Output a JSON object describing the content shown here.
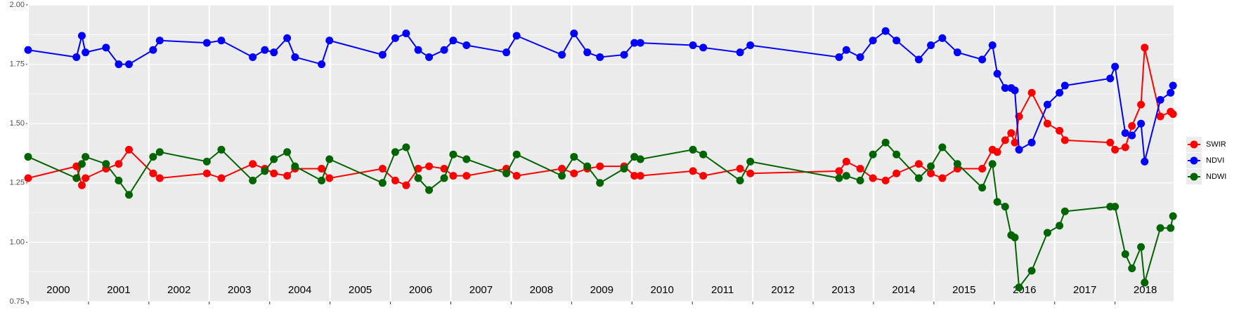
{
  "chart_data": {
    "type": "line",
    "x": [
      2000.0,
      2000.8,
      2000.89,
      2000.95,
      2001.29,
      2001.5,
      2001.67,
      2002.07,
      2002.18,
      2002.96,
      2003.2,
      2003.72,
      2003.92,
      2004.07,
      2004.29,
      2004.42,
      2004.86,
      2004.99,
      2005.87,
      2006.08,
      2006.26,
      2006.46,
      2006.64,
      2006.89,
      2007.04,
      2007.26,
      2007.92,
      2008.09,
      2008.84,
      2009.04,
      2009.26,
      2009.47,
      2009.87,
      2010.04,
      2010.14,
      2011.01,
      2011.18,
      2011.79,
      2011.96,
      2013.43,
      2013.55,
      2013.78,
      2013.99,
      2014.2,
      2014.38,
      2014.75,
      2014.95,
      2015.14,
      2015.39,
      2015.8,
      2015.97,
      2016.05,
      2016.18,
      2016.28,
      2016.34,
      2016.41,
      2016.62,
      2016.88,
      2017.08,
      2017.17,
      2017.92,
      2018.0,
      2018.17,
      2018.28,
      2018.43,
      2018.49,
      2018.75,
      2018.92,
      2018.96
    ],
    "series": [
      {
        "name": "SWIR",
        "color": "#ff0000",
        "values": [
          1.27,
          1.32,
          1.24,
          1.27,
          1.31,
          1.33,
          1.39,
          1.29,
          1.27,
          1.29,
          1.27,
          1.33,
          1.31,
          1.29,
          1.28,
          1.31,
          1.31,
          1.27,
          1.31,
          1.26,
          1.24,
          1.31,
          1.32,
          1.31,
          1.28,
          1.28,
          1.31,
          1.28,
          1.31,
          1.29,
          1.31,
          1.32,
          1.32,
          1.28,
          1.28,
          1.3,
          1.28,
          1.31,
          1.29,
          1.3,
          1.34,
          1.31,
          1.27,
          1.26,
          1.29,
          1.33,
          1.29,
          1.27,
          1.31,
          1.31,
          1.39,
          1.38,
          1.43,
          1.46,
          1.42,
          1.53,
          1.63,
          1.5,
          1.47,
          1.43,
          1.42,
          1.39,
          1.4,
          1.49,
          1.58,
          1.82,
          1.53,
          1.55,
          1.54
        ]
      },
      {
        "name": "NDVI",
        "color": "#0000ff",
        "values": [
          1.81,
          1.78,
          1.87,
          1.8,
          1.82,
          1.75,
          1.75,
          1.81,
          1.85,
          1.84,
          1.85,
          1.78,
          1.81,
          1.8,
          1.86,
          1.78,
          1.75,
          1.85,
          1.79,
          1.86,
          1.88,
          1.81,
          1.78,
          1.81,
          1.85,
          1.83,
          1.8,
          1.87,
          1.79,
          1.88,
          1.8,
          1.78,
          1.79,
          1.84,
          1.84,
          1.83,
          1.82,
          1.8,
          1.83,
          1.78,
          1.81,
          1.78,
          1.85,
          1.89,
          1.85,
          1.77,
          1.83,
          1.86,
          1.8,
          1.77,
          1.83,
          1.71,
          1.65,
          1.65,
          1.64,
          1.39,
          1.42,
          1.58,
          1.63,
          1.66,
          1.69,
          1.74,
          1.46,
          1.45,
          1.5,
          1.34,
          1.6,
          1.63,
          1.66
        ]
      },
      {
        "name": "NDWI",
        "color": "#006400",
        "values": [
          1.36,
          1.27,
          1.33,
          1.36,
          1.33,
          1.26,
          1.2,
          1.36,
          1.38,
          1.34,
          1.39,
          1.26,
          1.3,
          1.35,
          1.38,
          1.32,
          1.26,
          1.35,
          1.25,
          1.38,
          1.4,
          1.27,
          1.22,
          1.27,
          1.37,
          1.35,
          1.29,
          1.37,
          1.28,
          1.36,
          1.32,
          1.25,
          1.31,
          1.36,
          1.35,
          1.39,
          1.37,
          1.26,
          1.34,
          1.27,
          1.28,
          1.26,
          1.37,
          1.42,
          1.37,
          1.27,
          1.32,
          1.4,
          1.33,
          1.23,
          1.33,
          1.17,
          1.15,
          1.03,
          1.02,
          0.81,
          0.88,
          1.04,
          1.07,
          1.13,
          1.15,
          1.15,
          0.95,
          0.89,
          0.98,
          0.83,
          1.06,
          1.06,
          1.11
        ]
      }
    ],
    "xlim": [
      2000,
      2018.97
    ],
    "xticks": [
      2000,
      2001,
      2002,
      2003,
      2004,
      2005,
      2006,
      2007,
      2008,
      2009,
      2010,
      2011,
      2012,
      2013,
      2014,
      2015,
      2016,
      2017,
      2018
    ],
    "ylim": [
      0.75,
      2.0
    ],
    "yticks": [
      0.75,
      {
        "value": 1,
        "label": "1.00"
      },
      1.25,
      {
        "value": 1.5,
        "label": "1.50"
      },
      1.75,
      {
        "value": 2,
        "label": "2.00"
      }
    ],
    "grid": true
  }
}
